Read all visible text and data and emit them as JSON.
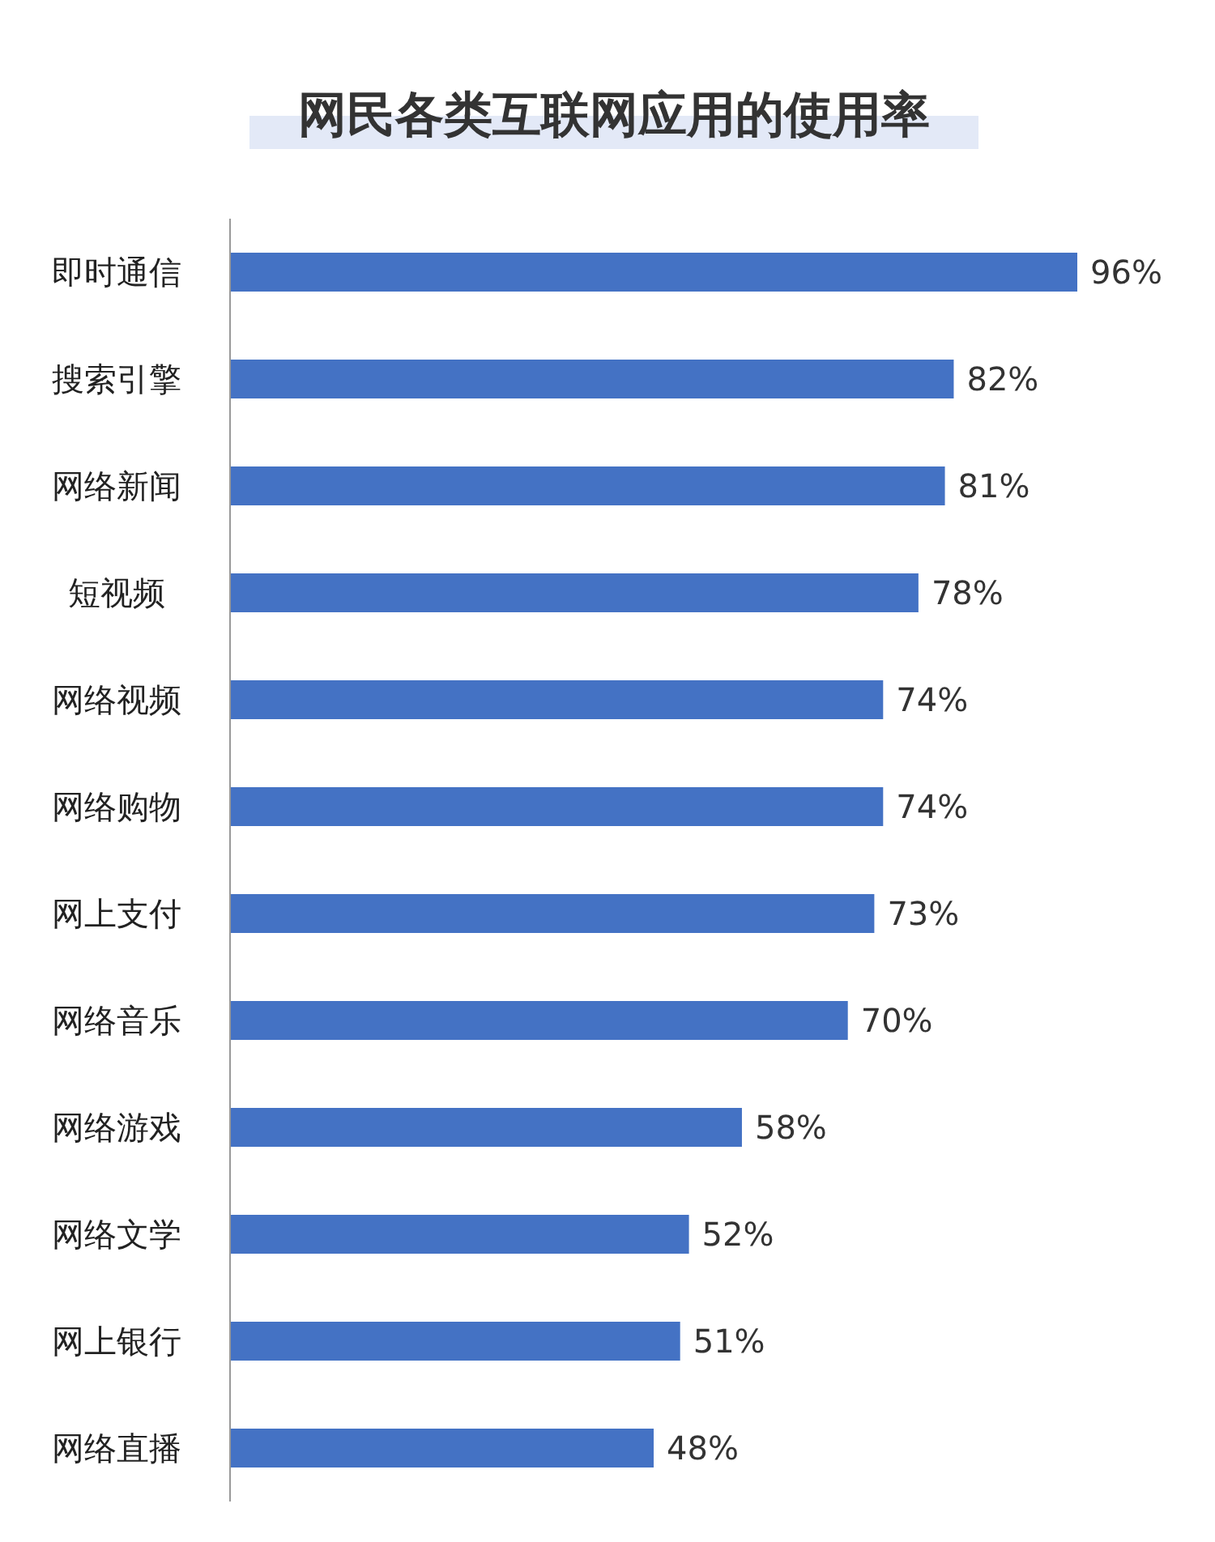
{
  "chart_data": {
    "type": "bar",
    "orientation": "horizontal",
    "title": "网民各类互联网应用的使用率",
    "categories": [
      "即时通信",
      "搜索引擎",
      "网络新闻",
      "短视频",
      "网络视频",
      "网络购物",
      "网上支付",
      "网络音乐",
      "网络游戏",
      "网络文学",
      "网上银行",
      "网络直播"
    ],
    "values": [
      96,
      82,
      81,
      78,
      74,
      74,
      73,
      70,
      58,
      52,
      51,
      48
    ],
    "value_labels": [
      "96%",
      "82%",
      "81%",
      "78%",
      "74%",
      "74%",
      "73%",
      "70%",
      "58%",
      "52%",
      "51%",
      "48%"
    ],
    "color": "#4472c4"
  }
}
